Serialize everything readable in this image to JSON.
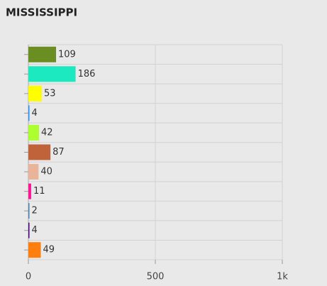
{
  "chart_data": {
    "type": "barh",
    "title": "MISSISSIPPI",
    "categories": [
      null,
      null,
      null,
      null,
      null,
      null,
      null,
      null,
      null,
      null,
      null
    ],
    "values": [
      109,
      186,
      53,
      4,
      42,
      87,
      40,
      11,
      2,
      4,
      49
    ],
    "colors": [
      "#6b8e23",
      "#1de9c0",
      "#ffff00",
      "#1e90ff",
      "#adff2f",
      "#c0633a",
      "#eab49a",
      "#ff1493",
      "#4682b4",
      "#4b0082",
      "#ff7f0e"
    ],
    "xlim": [
      0,
      1000
    ],
    "xticks": [
      0,
      500,
      {
        "value": 1000,
        "label": "1k"
      }
    ],
    "grid": true
  }
}
